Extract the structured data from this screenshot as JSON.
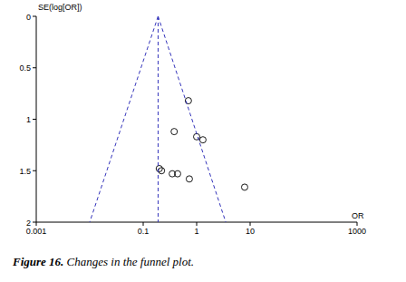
{
  "chart_data": {
    "type": "scatter",
    "caption": "Figure 16. Changes in the funnel plot.",
    "x_label": "OR",
    "y_label": "SE(log[OR])",
    "log": "x",
    "xlim": [
      0.001,
      1000
    ],
    "xticks": [
      0.001,
      0.1,
      1,
      10,
      1000
    ],
    "ylim": [
      0,
      2
    ],
    "yticks": [
      0,
      0.5,
      1,
      1.5,
      2
    ],
    "series": [
      {
        "type": "scatter",
        "marker": "circle",
        "color": "#000000",
        "x": [
          0.7,
          0.38,
          1.0,
          1.31,
          0.2,
          0.22,
          0.35,
          0.44,
          0.73,
          7.9
        ],
        "values": [
          0.82,
          1.12,
          1.17,
          1.2,
          1.48,
          1.5,
          1.53,
          1.53,
          1.58,
          1.66
        ]
      },
      {
        "type": "line",
        "line_style": "dashed",
        "color": "#3333bb",
        "x": [
          0.19,
          0.19
        ],
        "values": [
          0,
          2
        ]
      },
      {
        "type": "line",
        "line_style": "dashed",
        "color": "#3333bb",
        "x": [
          0.19,
          0.01
        ],
        "values": [
          0,
          2
        ]
      },
      {
        "type": "line",
        "line_style": "dashed",
        "color": "#3333bb",
        "x": [
          0.19,
          3.5
        ],
        "values": [
          0,
          2
        ]
      }
    ]
  }
}
